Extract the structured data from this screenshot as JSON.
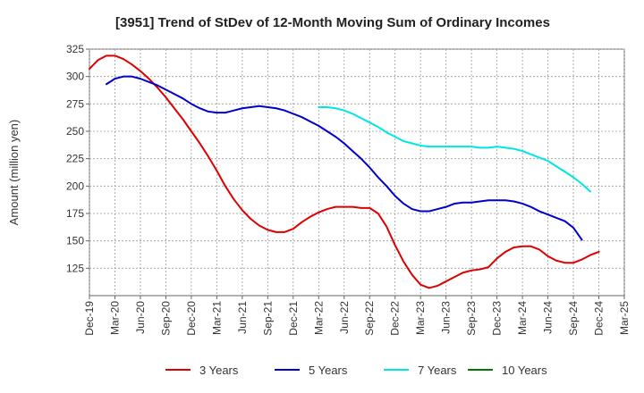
{
  "chart_data": {
    "type": "line",
    "title": "[3951]  Trend of StDev of 12-Month Moving Sum of Ordinary Incomes",
    "xlabel": "",
    "ylabel": "Amount (million yen)",
    "ylim": [
      100,
      325
    ],
    "yticks": [
      125,
      150,
      175,
      200,
      225,
      250,
      275,
      300,
      325
    ],
    "grid": true,
    "legend_position": "bottom",
    "xtick_labels": [
      "Dec-19",
      "Mar-20",
      "Jun-20",
      "Sep-20",
      "Dec-20",
      "Mar-21",
      "Jun-21",
      "Sep-21",
      "Dec-21",
      "Mar-22",
      "Jun-22",
      "Sep-22",
      "Dec-22",
      "Mar-23",
      "Jun-23",
      "Sep-23",
      "Dec-23",
      "Mar-24",
      "Jun-24",
      "Sep-24",
      "Dec-24",
      "Mar-25"
    ],
    "x_start": "Dec-19",
    "months_per_tick": 3,
    "series": [
      {
        "name": "3 Years",
        "color": "#dd0000",
        "start_month_index": 0,
        "values": [
          307,
          315,
          319,
          319,
          316,
          311,
          305,
          298,
          290,
          281,
          271,
          261,
          250,
          239,
          227,
          214,
          200,
          188,
          178,
          170,
          164,
          160,
          158,
          158,
          161,
          167,
          172,
          176,
          179,
          181,
          181,
          181,
          180,
          180,
          175,
          163,
          146,
          131,
          119,
          110,
          107,
          109,
          113,
          117,
          121,
          123,
          124,
          126,
          134,
          140,
          144,
          145,
          145,
          142,
          136,
          132,
          130,
          130,
          133,
          137,
          140
        ]
      },
      {
        "name": "5 Years",
        "color": "#0000cc",
        "start_month_index": 2,
        "values": [
          293,
          298,
          300,
          300,
          298,
          295,
          292,
          288,
          284,
          280,
          275,
          271,
          268,
          267,
          267,
          269,
          271,
          272,
          273,
          272,
          271,
          269,
          266,
          263,
          259,
          255,
          250,
          245,
          239,
          232,
          225,
          217,
          208,
          200,
          191,
          184,
          179,
          177,
          177,
          179,
          181,
          184,
          185,
          185,
          186,
          187,
          187,
          187,
          186,
          184,
          181,
          177,
          174,
          171,
          168,
          162,
          151
        ]
      },
      {
        "name": "7 Years",
        "color": "#00e5e5",
        "start_month_index": 27,
        "values": [
          272,
          272,
          271,
          269,
          266,
          262,
          258,
          254,
          249,
          245,
          241,
          239,
          237,
          236,
          236,
          236,
          236,
          236,
          236,
          235,
          235,
          236,
          235,
          234,
          232,
          229,
          226,
          223,
          218,
          213,
          208,
          202,
          195
        ]
      },
      {
        "name": "10 Years",
        "color": "#007700",
        "start_month_index": 0,
        "values": []
      }
    ]
  }
}
